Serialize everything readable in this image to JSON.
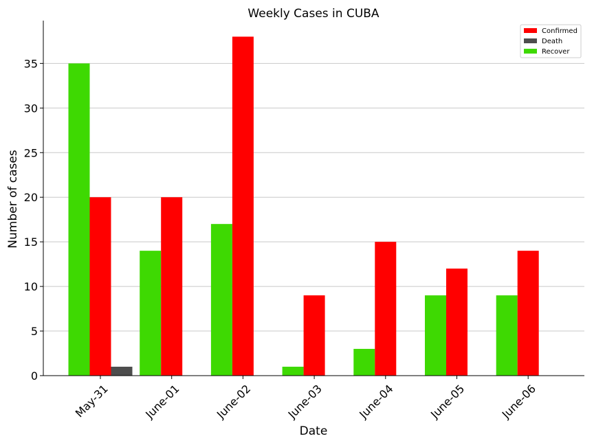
{
  "chart_data": {
    "type": "bar",
    "title": "Weekly Cases in CUBA",
    "xlabel": "Date",
    "ylabel": "Number of cases",
    "categories": [
      "May-31",
      "June-01",
      "June-02",
      "June-03",
      "June-04",
      "June-05",
      "June-06"
    ],
    "series": [
      {
        "name": "Recover",
        "color": "#3ed902",
        "values": [
          35,
          14,
          17,
          1,
          3,
          9,
          9
        ]
      },
      {
        "name": "Confirmed",
        "color": "#ff0000",
        "values": [
          20,
          20,
          38,
          9,
          15,
          12,
          14
        ]
      },
      {
        "name": "Death",
        "color": "#4d4d4d",
        "values": [
          1,
          0,
          0,
          0,
          0,
          0,
          0
        ]
      }
    ],
    "legend_order": [
      "Confirmed",
      "Death",
      "Recover"
    ],
    "legend_position": "top-right",
    "ylim": [
      0,
      40
    ],
    "yticks": [
      0,
      5,
      10,
      15,
      20,
      25,
      30,
      35
    ],
    "grid": "horizontal",
    "tick_rotation": 45
  }
}
